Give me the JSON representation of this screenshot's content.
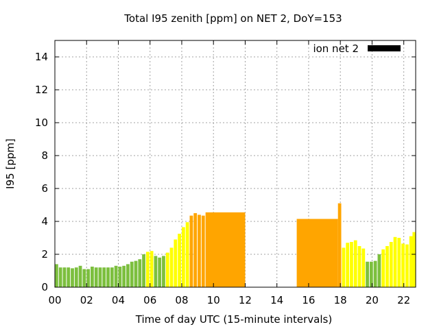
{
  "chart_data": {
    "type": "bar",
    "title": "Total I95 zenith [ppm] on NET 2, DoY=153",
    "xlabel": "Time of day UTC (15-minute intervals)",
    "ylabel": "I95 [ppm]",
    "xlim": [
      0,
      22.75
    ],
    "ylim": [
      0,
      15
    ],
    "x_ticks": [
      "00",
      "02",
      "04",
      "06",
      "08",
      "10",
      "12",
      "14",
      "16",
      "18",
      "20",
      "22"
    ],
    "y_ticks": [
      "0",
      "2",
      "4",
      "6",
      "8",
      "10",
      "12",
      "14"
    ],
    "grid": true,
    "legend": {
      "label": "ion net 2",
      "color": "#000000",
      "placement": "top-right"
    },
    "colors": {
      "low": "#7cbf3e",
      "medium": "#ffff00",
      "high": "#ffa500"
    },
    "bars": [
      {
        "t": 0.0,
        "v": 1.4,
        "c": "low"
      },
      {
        "t": 0.25,
        "v": 1.2,
        "c": "low"
      },
      {
        "t": 0.5,
        "v": 1.2,
        "c": "low"
      },
      {
        "t": 0.75,
        "v": 1.2,
        "c": "low"
      },
      {
        "t": 1.0,
        "v": 1.15,
        "c": "low"
      },
      {
        "t": 1.25,
        "v": 1.2,
        "c": "low"
      },
      {
        "t": 1.5,
        "v": 1.3,
        "c": "low"
      },
      {
        "t": 1.75,
        "v": 1.1,
        "c": "low"
      },
      {
        "t": 2.0,
        "v": 1.1,
        "c": "low"
      },
      {
        "t": 2.25,
        "v": 1.25,
        "c": "low"
      },
      {
        "t": 2.5,
        "v": 1.2,
        "c": "low"
      },
      {
        "t": 2.75,
        "v": 1.2,
        "c": "low"
      },
      {
        "t": 3.0,
        "v": 1.2,
        "c": "low"
      },
      {
        "t": 3.25,
        "v": 1.2,
        "c": "low"
      },
      {
        "t": 3.5,
        "v": 1.2,
        "c": "low"
      },
      {
        "t": 3.75,
        "v": 1.3,
        "c": "low"
      },
      {
        "t": 4.0,
        "v": 1.25,
        "c": "low"
      },
      {
        "t": 4.25,
        "v": 1.3,
        "c": "low"
      },
      {
        "t": 4.5,
        "v": 1.4,
        "c": "low"
      },
      {
        "t": 4.75,
        "v": 1.55,
        "c": "low"
      },
      {
        "t": 5.0,
        "v": 1.6,
        "c": "low"
      },
      {
        "t": 5.25,
        "v": 1.7,
        "c": "low"
      },
      {
        "t": 5.5,
        "v": 2.0,
        "c": "low"
      },
      {
        "t": 5.75,
        "v": 2.15,
        "c": "medium"
      },
      {
        "t": 6.0,
        "v": 2.2,
        "c": "medium"
      },
      {
        "t": 6.25,
        "v": 1.9,
        "c": "low"
      },
      {
        "t": 6.5,
        "v": 1.8,
        "c": "low"
      },
      {
        "t": 6.75,
        "v": 1.9,
        "c": "low"
      },
      {
        "t": 7.0,
        "v": 2.1,
        "c": "medium"
      },
      {
        "t": 7.25,
        "v": 2.4,
        "c": "medium"
      },
      {
        "t": 7.5,
        "v": 2.9,
        "c": "medium"
      },
      {
        "t": 7.75,
        "v": 3.25,
        "c": "medium"
      },
      {
        "t": 8.0,
        "v": 3.65,
        "c": "medium"
      },
      {
        "t": 8.25,
        "v": 3.95,
        "c": "medium"
      },
      {
        "t": 8.5,
        "v": 4.35,
        "c": "high"
      },
      {
        "t": 8.75,
        "v": 4.5,
        "c": "high"
      },
      {
        "t": 9.0,
        "v": 4.4,
        "c": "high"
      },
      {
        "t": 9.25,
        "v": 4.35,
        "c": "high"
      },
      {
        "t": 9.5,
        "v": 4.55,
        "c": "high",
        "end": 12.0
      },
      {
        "t": 15.25,
        "v": 4.15,
        "c": "high",
        "end": 17.85
      },
      {
        "t": 17.85,
        "v": 5.1,
        "c": "high"
      },
      {
        "t": 18.1,
        "v": 2.4,
        "c": "medium"
      },
      {
        "t": 18.35,
        "v": 2.7,
        "c": "medium"
      },
      {
        "t": 18.6,
        "v": 2.75,
        "c": "medium"
      },
      {
        "t": 18.85,
        "v": 2.85,
        "c": "medium"
      },
      {
        "t": 19.1,
        "v": 2.5,
        "c": "medium"
      },
      {
        "t": 19.35,
        "v": 2.35,
        "c": "medium"
      },
      {
        "t": 19.6,
        "v": 1.55,
        "c": "low"
      },
      {
        "t": 19.85,
        "v": 1.55,
        "c": "low"
      },
      {
        "t": 20.1,
        "v": 1.6,
        "c": "low"
      },
      {
        "t": 20.35,
        "v": 2.0,
        "c": "low"
      },
      {
        "t": 20.6,
        "v": 2.3,
        "c": "medium"
      },
      {
        "t": 20.85,
        "v": 2.5,
        "c": "medium"
      },
      {
        "t": 21.1,
        "v": 2.75,
        "c": "medium"
      },
      {
        "t": 21.35,
        "v": 3.05,
        "c": "medium"
      },
      {
        "t": 21.6,
        "v": 3.0,
        "c": "medium"
      },
      {
        "t": 21.85,
        "v": 2.65,
        "c": "medium"
      },
      {
        "t": 22.1,
        "v": 2.6,
        "c": "medium"
      },
      {
        "t": 22.35,
        "v": 3.1,
        "c": "medium"
      },
      {
        "t": 22.55,
        "v": 3.35,
        "c": "medium"
      }
    ]
  }
}
